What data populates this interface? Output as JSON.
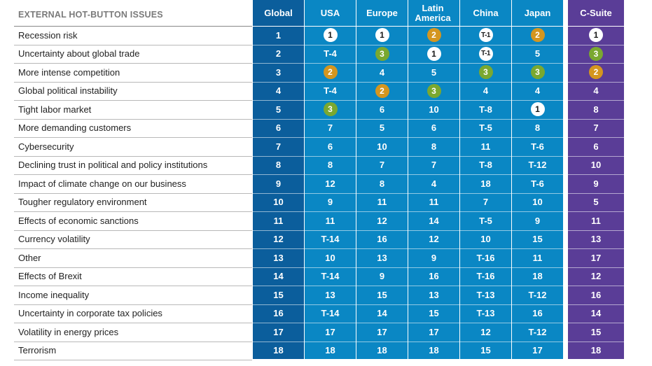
{
  "chart_data": {
    "type": "table",
    "title": "EXTERNAL HOT-BUTTON ISSUES",
    "columns": [
      "Global",
      "USA",
      "Europe",
      "Latin America",
      "China",
      "Japan",
      "C-Suite"
    ],
    "rows": [
      {
        "issue": "Recession risk",
        "values": [
          "1",
          "1",
          "1",
          "2",
          "T-1",
          "2",
          "1"
        ],
        "styles": [
          "",
          "white",
          "white",
          "gold",
          "white",
          "gold",
          "white"
        ]
      },
      {
        "issue": "Uncertainty about global trade",
        "values": [
          "2",
          "T-4",
          "3",
          "1",
          "T-1",
          "5",
          "3"
        ],
        "styles": [
          "",
          "",
          "green",
          "white",
          "white",
          "",
          "green"
        ]
      },
      {
        "issue": "More intense competition",
        "values": [
          "3",
          "2",
          "4",
          "5",
          "3",
          "3",
          "2"
        ],
        "styles": [
          "",
          "gold",
          "",
          "",
          "green",
          "green",
          "gold"
        ]
      },
      {
        "issue": "Global political instability",
        "values": [
          "4",
          "T-4",
          "2",
          "3",
          "4",
          "4",
          "4"
        ],
        "styles": [
          "",
          "",
          "gold",
          "green",
          "",
          "",
          ""
        ]
      },
      {
        "issue": "Tight labor market",
        "values": [
          "5",
          "3",
          "6",
          "10",
          "T-8",
          "1",
          "8"
        ],
        "styles": [
          "",
          "green",
          "",
          "",
          "",
          "white",
          ""
        ]
      },
      {
        "issue": "More demanding customers",
        "values": [
          "6",
          "7",
          "5",
          "6",
          "T-5",
          "8",
          "7"
        ],
        "styles": [
          "",
          "",
          "",
          "",
          "",
          "",
          ""
        ]
      },
      {
        "issue": "Cybersecurity",
        "values": [
          "7",
          "6",
          "10",
          "8",
          "11",
          "T-6",
          "6"
        ],
        "styles": [
          "",
          "",
          "",
          "",
          "",
          "",
          ""
        ]
      },
      {
        "issue": "Declining trust in political and policy institutions",
        "values": [
          "8",
          "8",
          "7",
          "7",
          "T-8",
          "T-12",
          "10"
        ],
        "styles": [
          "",
          "",
          "",
          "",
          "",
          "",
          ""
        ]
      },
      {
        "issue": "Impact of climate change on our business",
        "values": [
          "9",
          "12",
          "8",
          "4",
          "18",
          "T-6",
          "9"
        ],
        "styles": [
          "",
          "",
          "",
          "",
          "",
          "",
          ""
        ]
      },
      {
        "issue": "Tougher regulatory environment",
        "values": [
          "10",
          "9",
          "11",
          "11",
          "7",
          "10",
          "5"
        ],
        "styles": [
          "",
          "",
          "",
          "",
          "",
          "",
          ""
        ]
      },
      {
        "issue": "Effects of economic sanctions",
        "values": [
          "11",
          "11",
          "12",
          "14",
          "T-5",
          "9",
          "11"
        ],
        "styles": [
          "",
          "",
          "",
          "",
          "",
          "",
          ""
        ]
      },
      {
        "issue": "Currency volatility",
        "values": [
          "12",
          "T-14",
          "16",
          "12",
          "10",
          "15",
          "13"
        ],
        "styles": [
          "",
          "",
          "",
          "",
          "",
          "",
          ""
        ]
      },
      {
        "issue": "Other",
        "values": [
          "13",
          "10",
          "13",
          "9",
          "T-16",
          "11",
          "17"
        ],
        "styles": [
          "",
          "",
          "",
          "",
          "",
          "",
          ""
        ]
      },
      {
        "issue": "Effects of Brexit",
        "values": [
          "14",
          "T-14",
          "9",
          "16",
          "T-16",
          "18",
          "12"
        ],
        "styles": [
          "",
          "",
          "",
          "",
          "",
          "",
          ""
        ]
      },
      {
        "issue": "Income inequality",
        "values": [
          "15",
          "13",
          "15",
          "13",
          "T-13",
          "T-12",
          "16"
        ],
        "styles": [
          "",
          "",
          "",
          "",
          "",
          "",
          ""
        ]
      },
      {
        "issue": "Uncertainty in corporate tax policies",
        "values": [
          "16",
          "T-14",
          "14",
          "15",
          "T-13",
          "16",
          "14"
        ],
        "styles": [
          "",
          "",
          "",
          "",
          "",
          "",
          ""
        ]
      },
      {
        "issue": "Volatility in energy prices",
        "values": [
          "17",
          "17",
          "17",
          "17",
          "12",
          "T-12",
          "15"
        ],
        "styles": [
          "",
          "",
          "",
          "",
          "",
          "",
          ""
        ]
      },
      {
        "issue": "Terrorism",
        "values": [
          "18",
          "18",
          "18",
          "18",
          "15",
          "17",
          "18"
        ],
        "styles": [
          "",
          "",
          "",
          "",
          "",
          "",
          ""
        ]
      }
    ]
  },
  "colors": {
    "global_col": "#0b5e9c",
    "region_cols": "#0a87c4",
    "csuite_col": "#5a3d97",
    "badge_white": "#ffffff",
    "badge_gold": "#d4961f",
    "badge_green": "#7aa830"
  }
}
